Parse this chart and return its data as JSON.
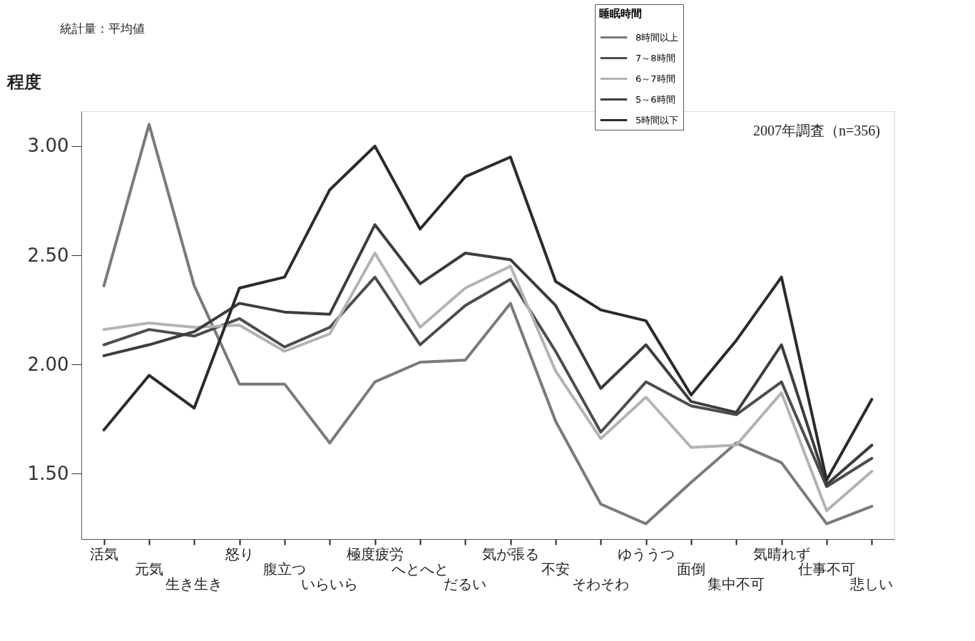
{
  "chart_data": {
    "type": "line",
    "ylabel": "程度",
    "legend_title": "睡眠時間",
    "legend": "top right",
    "annotations": [
      "統計量：平均値",
      "2007年調査（n=356)"
    ],
    "categories": [
      "活気",
      "元気",
      "生き生き",
      "怒り",
      "腹立つ",
      "いらいら",
      "極度疲労",
      "へとへと",
      "だるい",
      "気が張る",
      "不安",
      "そわそわ",
      "ゆううつ",
      "面倒",
      "集中不可",
      "気晴れず",
      "仕事不可",
      "悲しい"
    ],
    "ylim": [
      1.2,
      3.16
    ],
    "yticks": [
      {
        "value": 1.5,
        "label": "1.50"
      },
      {
        "value": 2,
        "label": "2.00"
      },
      {
        "value": 2.5,
        "label": "2.50"
      },
      {
        "value": 3,
        "label": "3.00"
      }
    ],
    "series": [
      {
        "name": "8時間以上",
        "color": "#7a7a7a",
        "values": [
          2.36,
          3.1,
          2.36,
          1.91,
          1.91,
          1.64,
          1.92,
          2.01,
          2.02,
          2.28,
          1.74,
          1.36,
          1.27,
          1.46,
          1.64,
          1.55,
          1.27,
          1.35
        ]
      },
      {
        "name": "7～8時間",
        "color": "#4d4d4d",
        "values": [
          2.09,
          2.16,
          2.13,
          2.21,
          2.08,
          2.17,
          2.4,
          2.09,
          2.27,
          2.39,
          2.06,
          1.69,
          1.92,
          1.81,
          1.77,
          1.92,
          1.44,
          1.57
        ]
      },
      {
        "name": "6～7時間",
        "color": "#b3b3b3",
        "values": [
          2.16,
          2.19,
          2.17,
          2.18,
          2.06,
          2.14,
          2.51,
          2.17,
          2.35,
          2.45,
          1.97,
          1.66,
          1.85,
          1.62,
          1.63,
          1.87,
          1.33,
          1.51
        ]
      },
      {
        "name": "5～6時間",
        "color": "#3d3d3d",
        "values": [
          2.04,
          2.09,
          2.15,
          2.28,
          2.24,
          2.23,
          2.64,
          2.37,
          2.51,
          2.48,
          2.27,
          1.89,
          2.09,
          1.83,
          1.78,
          2.09,
          1.45,
          1.63
        ]
      },
      {
        "name": "5時間以下",
        "color": "#2b2b2b",
        "values": [
          1.7,
          1.95,
          1.8,
          2.35,
          2.4,
          2.8,
          3.0,
          2.62,
          2.86,
          2.95,
          2.38,
          2.25,
          2.2,
          1.86,
          2.11,
          2.4,
          1.47,
          1.84
        ]
      }
    ]
  }
}
